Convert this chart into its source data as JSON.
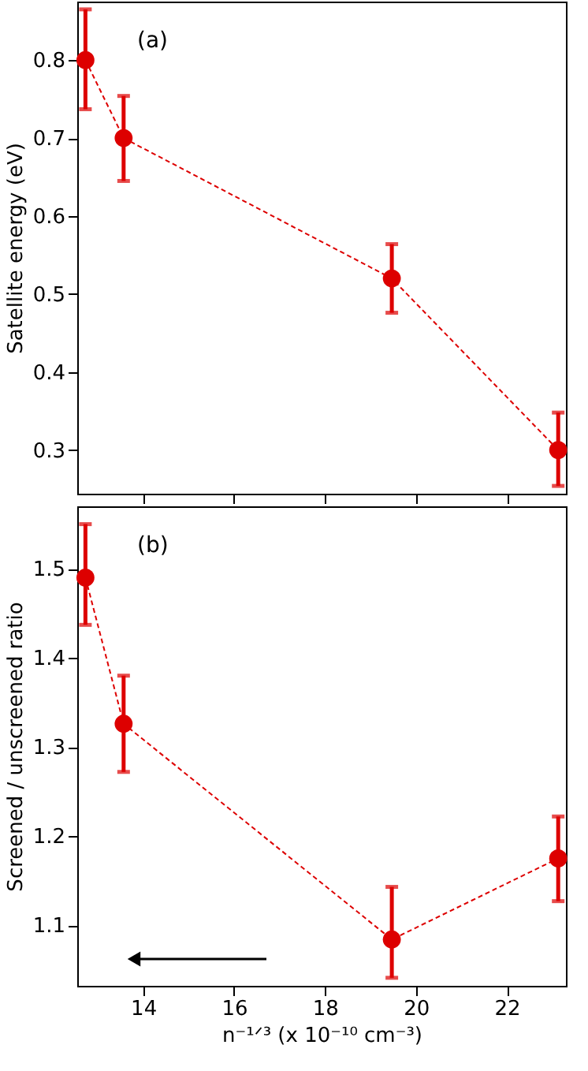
{
  "chart_data": [
    {
      "type": "line",
      "ylabel": "Satellite energy (eV)",
      "annotations": [
        "(a)"
      ],
      "x": [
        12.73,
        13.57,
        19.47,
        23.13
      ],
      "xlim": [
        12.55,
        23.3
      ],
      "xticks": [
        14,
        16,
        18,
        20,
        22
      ],
      "ylim": [
        0.244,
        0.875
      ],
      "yticks": [
        0.3,
        0.4,
        0.5,
        0.6,
        0.7,
        0.8
      ],
      "tick_labels": "y",
      "grid": false,
      "marker": "circle",
      "line_style": "dashed",
      "series": [
        {
          "color": "#dd0000",
          "values": [
            0.8,
            0.7,
            0.52,
            0.3
          ],
          "errors": [
            [
              0.737,
              0.865
            ],
            [
              0.645,
              0.754
            ],
            [
              0.476,
              0.564
            ],
            [
              0.254,
              0.348
            ]
          ]
        }
      ]
    },
    {
      "type": "line",
      "xlabel": "n⁻¹ᐟ³ (x 10⁻¹⁰ cm⁻³)",
      "ylabel": "Screened / unscreened  ratio",
      "annotations": [
        "(b)"
      ],
      "x": [
        12.73,
        13.57,
        19.47,
        23.13
      ],
      "xlim": [
        12.55,
        23.3
      ],
      "xticks": [
        14,
        16,
        18,
        20,
        22
      ],
      "ylim": [
        1.032,
        1.57
      ],
      "yticks": [
        1.1,
        1.2,
        1.3,
        1.4,
        1.5
      ],
      "grid": false,
      "marker": "circle",
      "line_style": "dashed",
      "series": [
        {
          "color": "#dd0000",
          "values": [
            1.49,
            1.326,
            1.084,
            1.175
          ],
          "errors": [
            [
              1.437,
              1.55
            ],
            [
              1.272,
              1.38
            ],
            [
              1.041,
              1.143
            ],
            [
              1.127,
              1.222
            ]
          ]
        }
      ]
    }
  ]
}
